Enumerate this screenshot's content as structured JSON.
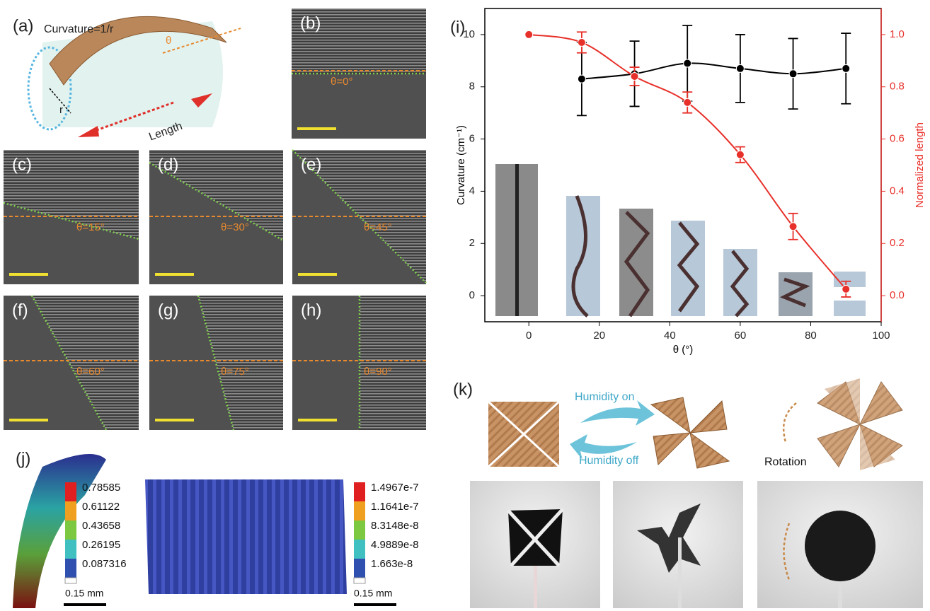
{
  "panels": {
    "a": {
      "label": "(a)",
      "curvature": "Curvature=1/r",
      "theta": "θ",
      "r": "r",
      "length": "Length"
    },
    "b": {
      "label": "(b)",
      "angle": "θ=0°"
    },
    "c": {
      "label": "(c)",
      "angle": "θ=15°"
    },
    "d": {
      "label": "(d)",
      "angle": "θ=30°"
    },
    "e": {
      "label": "(e)",
      "angle": "θ=45°"
    },
    "f": {
      "label": "(f)",
      "angle": "θ=60°"
    },
    "g": {
      "label": "(g)",
      "angle": "θ=75°"
    },
    "h": {
      "label": "(h)",
      "angle": "θ=90°"
    },
    "j": {
      "label": "(j)",
      "left_colorbar": [
        "0.78585",
        "0.61122",
        "0.43658",
        "0.26195",
        "0.087316"
      ],
      "right_colorbar": [
        "1.4967e-7",
        "1.1641e-7",
        "8.3148e-8",
        "4.9889e-8",
        "1.663e-8"
      ],
      "scale_left": "0.15 mm",
      "scale_right": "0.15 mm"
    },
    "k": {
      "label": "(k)",
      "on": "Humidity on",
      "off": "Humidity off",
      "rotation": "Rotation"
    }
  },
  "chart_data": {
    "type": "line",
    "label": "(i)",
    "x_label": "θ (°)",
    "y_label": "Curvature (cm⁻¹)",
    "y2_label": "Normalized length",
    "xlim": [
      -12.5,
      100
    ],
    "xticks": [
      0,
      20,
      40,
      60,
      80,
      100
    ],
    "ylim": [
      -1,
      11
    ],
    "yticks": [
      0,
      2,
      4,
      6,
      8,
      10
    ],
    "y2lim": [
      -0.1,
      1.1
    ],
    "y2ticks": [
      {
        "value": 0,
        "label": "0.0"
      },
      0.2,
      0.4,
      0.6,
      0.8,
      {
        "value": 1,
        "label": "1.0"
      }
    ],
    "series": [
      {
        "color": "#000000",
        "x": [
          15,
          30,
          45,
          60,
          75,
          90
        ],
        "values": [
          8.3,
          8.5,
          8.9,
          8.7,
          8.5,
          8.7
        ],
        "errors": [
          1.4,
          1.25,
          1.45,
          1.3,
          1.35,
          1.35
        ]
      },
      {
        "color": "#e8302a",
        "axis": "y2",
        "x": [
          0,
          15,
          30,
          45,
          60,
          75,
          90
        ],
        "values": [
          1.0,
          0.97,
          0.84,
          0.74,
          0.54,
          0.265,
          0.025
        ],
        "errors": [
          null,
          0.04,
          0.035,
          0.04,
          0.03,
          0.05,
          0.03
        ]
      }
    ]
  }
}
